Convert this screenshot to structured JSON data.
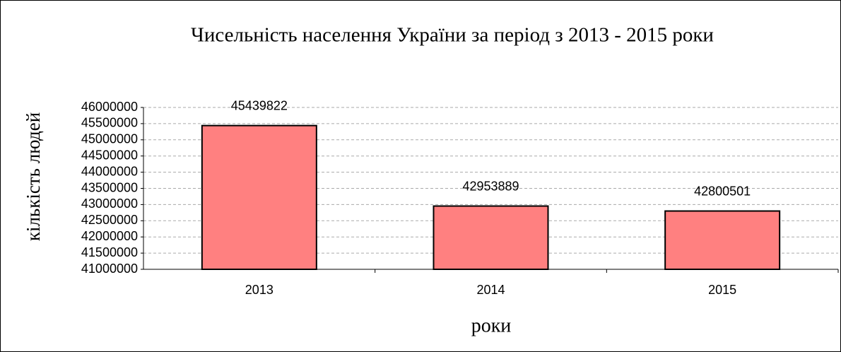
{
  "chart_data": {
    "type": "bar",
    "title": "Чисельність  населення  України за період з 2013 -  2015 роки",
    "x_label": "роки",
    "y_label": "кількість людей",
    "categories": [
      "2013",
      "2014",
      "2015"
    ],
    "values": [
      45439822,
      42953889,
      42800501
    ],
    "color": "#ff8080",
    "ylim": [
      41000000,
      46000000
    ],
    "yticks": [
      41000000,
      41500000,
      42000000,
      42500000,
      43000000,
      43500000,
      44000000,
      44500000,
      45000000,
      45500000,
      46000000
    ],
    "grid": true
  }
}
